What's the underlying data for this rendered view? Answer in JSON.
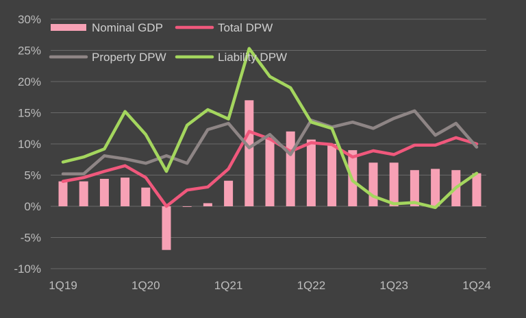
{
  "chart_data": {
    "type": "bar+line",
    "title": "",
    "xlabel": "",
    "ylabel": "",
    "ylim": [
      -10,
      30
    ],
    "yticks": [
      -10,
      -5,
      0,
      5,
      10,
      15,
      20,
      25,
      30
    ],
    "ytick_labels": [
      "-10%",
      "-5%",
      "0%",
      "5%",
      "10%",
      "15%",
      "20%",
      "25%",
      "30%"
    ],
    "x_tick_labels": [
      "1Q19",
      "1Q20",
      "1Q21",
      "1Q22",
      "1Q23",
      "1Q24"
    ],
    "x_tick_indices": [
      0,
      4,
      8,
      12,
      16,
      20
    ],
    "categories": [
      "1Q19",
      "2Q19",
      "3Q19",
      "4Q19",
      "1Q20",
      "2Q20",
      "3Q20",
      "4Q20",
      "1Q21",
      "2Q21",
      "3Q21",
      "4Q21",
      "1Q22",
      "2Q22",
      "3Q22",
      "4Q22",
      "1Q23",
      "2Q23",
      "3Q23",
      "4Q23",
      "1Q24"
    ],
    "grid": true,
    "legend_position": "top",
    "background": "#404040",
    "colors": {
      "background": "#404040",
      "grid": "#6a6a6a",
      "axis_text": "#bdbdbd",
      "legend_text": "#d0d0d0"
    },
    "series": [
      {
        "name": "Nominal GDP",
        "kind": "bar",
        "color": "#f7a1b5",
        "values": [
          4.0,
          4.0,
          4.4,
          4.6,
          3.0,
          -7.0,
          -0.1,
          0.5,
          4.1,
          17.0,
          11.0,
          12.0,
          10.7,
          10.0,
          9.0,
          7.0,
          7.0,
          5.8,
          6.0,
          5.8,
          5.3
        ]
      },
      {
        "name": "Total DPW",
        "kind": "line",
        "color": "#f0587c",
        "values": [
          4.0,
          4.6,
          5.6,
          6.5,
          4.6,
          0.0,
          2.6,
          3.1,
          6.0,
          12.0,
          10.8,
          8.8,
          10.2,
          9.9,
          7.9,
          8.9,
          8.3,
          9.8,
          9.8,
          11.0,
          10.0
        ]
      },
      {
        "name": "Property DPW",
        "kind": "line",
        "color": "#8e8585",
        "values": [
          5.2,
          5.2,
          8.1,
          7.6,
          6.9,
          8.1,
          6.9,
          12.3,
          13.3,
          9.4,
          11.5,
          8.3,
          13.8,
          12.7,
          13.5,
          12.5,
          14.1,
          15.3,
          11.4,
          13.3,
          9.5
        ]
      },
      {
        "name": "Liability DPW",
        "kind": "line",
        "color": "#a4d65e",
        "values": [
          7.1,
          7.9,
          9.2,
          15.2,
          11.5,
          5.6,
          13.0,
          15.5,
          14.0,
          25.3,
          20.8,
          19.0,
          13.5,
          12.5,
          4.1,
          1.6,
          0.4,
          0.6,
          -0.2,
          3.0,
          5.3
        ]
      }
    ]
  }
}
